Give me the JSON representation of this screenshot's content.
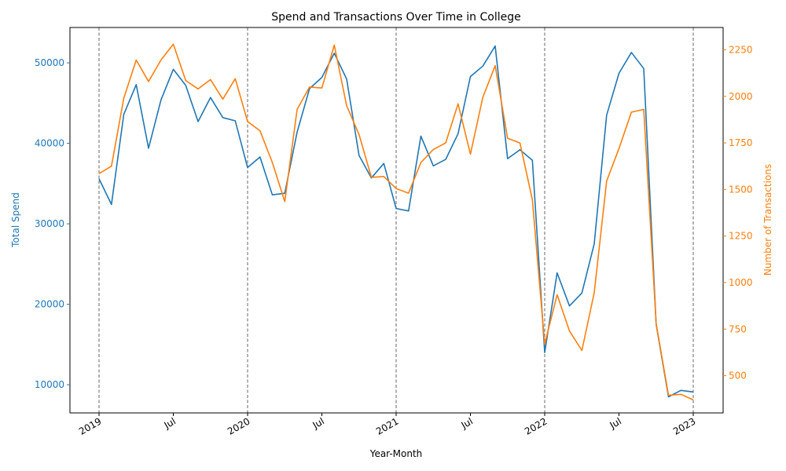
{
  "chart_data": {
    "type": "line",
    "title": "Spend and Transactions Over Time in College",
    "xlabel": "Year-Month",
    "ylabel_left": "Total Spend",
    "ylabel_right": "Number of Transactions",
    "x": [
      "2019-01",
      "2019-02",
      "2019-03",
      "2019-04",
      "2019-05",
      "2019-06",
      "2019-07",
      "2019-08",
      "2019-09",
      "2019-10",
      "2019-11",
      "2019-12",
      "2020-01",
      "2020-02",
      "2020-03",
      "2020-04",
      "2020-05",
      "2020-06",
      "2020-07",
      "2020-08",
      "2020-09",
      "2020-10",
      "2020-11",
      "2020-12",
      "2021-01",
      "2021-02",
      "2021-03",
      "2021-04",
      "2021-05",
      "2021-06",
      "2021-07",
      "2021-08",
      "2021-09",
      "2021-10",
      "2021-11",
      "2021-12",
      "2022-01",
      "2022-02",
      "2022-03",
      "2022-04",
      "2022-05",
      "2022-06",
      "2022-07",
      "2022-08",
      "2022-09",
      "2022-10",
      "2022-11",
      "2022-12",
      "2023-01"
    ],
    "x_ticks": [
      {
        "date": "2019-01",
        "label": "2019"
      },
      {
        "date": "2019-07",
        "label": "Jul"
      },
      {
        "date": "2020-01",
        "label": "2020"
      },
      {
        "date": "2020-07",
        "label": "Jul"
      },
      {
        "date": "2021-01",
        "label": "2021"
      },
      {
        "date": "2021-07",
        "label": "Jul"
      },
      {
        "date": "2022-01",
        "label": "2022"
      },
      {
        "date": "2022-07",
        "label": "Jul"
      },
      {
        "date": "2023-01",
        "label": "2023"
      }
    ],
    "year_markers": [
      "2019-01",
      "2020-01",
      "2021-01",
      "2022-01",
      "2023-01"
    ],
    "series": [
      {
        "axis": "left",
        "color": "#1f77b4",
        "values": [
          35600,
          32400,
          43600,
          47300,
          39400,
          45400,
          49200,
          47200,
          42700,
          45700,
          43200,
          42800,
          37000,
          38300,
          33600,
          33800,
          41400,
          46800,
          48200,
          51200,
          48000,
          38500,
          35700,
          37500,
          31900,
          31600,
          40900,
          37200,
          38000,
          41200,
          48300,
          49600,
          52100,
          38100,
          39200,
          37900,
          14000,
          23900,
          19800,
          21400,
          27500,
          43500,
          48700,
          51300,
          49300,
          17500,
          8500,
          9300,
          9100
        ]
      },
      {
        "axis": "right",
        "color": "#ff7f0e",
        "values": [
          1585,
          1625,
          1990,
          2195,
          2080,
          2195,
          2280,
          2085,
          2040,
          2090,
          1985,
          2095,
          1865,
          1815,
          1645,
          1435,
          1930,
          2050,
          2045,
          2275,
          1950,
          1795,
          1565,
          1570,
          1505,
          1480,
          1645,
          1715,
          1750,
          1960,
          1690,
          1995,
          2165,
          1775,
          1750,
          1445,
          670,
          935,
          740,
          635,
          945,
          1545,
          1720,
          1915,
          1930,
          780,
          395,
          400,
          370
        ]
      }
    ],
    "y_left": {
      "lim": [
        6500,
        54400
      ],
      "ticks": [
        10000,
        20000,
        30000,
        40000,
        50000
      ]
    },
    "y_right": {
      "lim": [
        300,
        2370
      ],
      "ticks": [
        500,
        750,
        1000,
        1250,
        1500,
        1750,
        2000,
        2250
      ]
    },
    "grid": false,
    "marker_line_color": "#808080",
    "left_axis_color": "#1f77b4",
    "right_axis_color": "#ff7f0e"
  }
}
